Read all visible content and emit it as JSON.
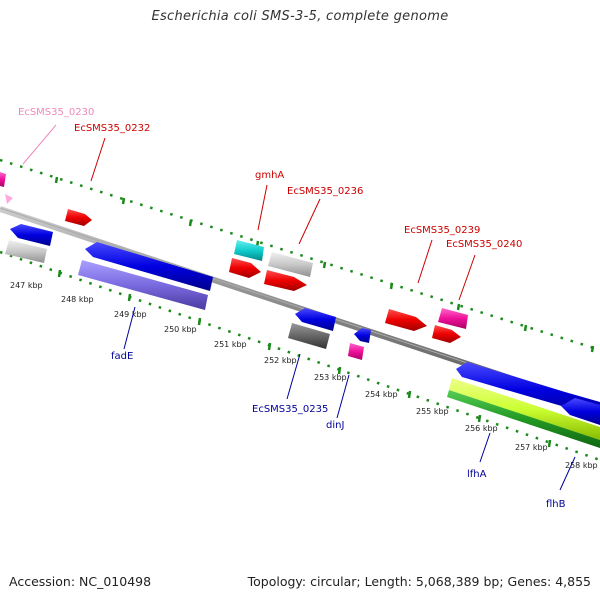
{
  "title": "Escherichia coli SMS-3-5, complete genome",
  "footer": {
    "accession": "Accession: NC_010498",
    "stats": "Topology: circular; Length: 5,068,389 bp; Genes: 4,855"
  },
  "scale_labels": [
    "247 kbp",
    "248 kbp",
    "249 kbp",
    "250 kbp",
    "251 kbp",
    "252 kbp",
    "253 kbp",
    "254 kbp",
    "255 kbp",
    "256 kbp",
    "257 kbp",
    "258 kbp"
  ],
  "gene_labels": {
    "ecsms35_0230": "EcSMS35_0230",
    "ecsms35_0232": "EcSMS35_0232",
    "gmha": "gmhA",
    "ecsms35_0236": "EcSMS35_0236",
    "ecsms35_0239": "EcSMS35_0239",
    "ecsms35_0240": "EcSMS35_0240",
    "fade": "fadE",
    "ecsms35_0235": "EcSMS35_0235",
    "dinj": "dinJ",
    "lfha": "lfhA",
    "flhb": "flhB"
  },
  "colors": {
    "forward_gene": "#e00000",
    "reverse_gene": "#0000dd",
    "label_forward": "#cc0000",
    "label_reverse": "#000099",
    "label_pink": "#ee88bb",
    "backbone": "#888888",
    "dots": "#1a8a1a"
  }
}
